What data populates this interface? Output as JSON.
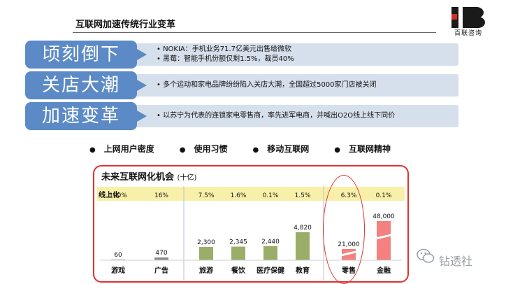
{
  "header": {
    "title": "互联网加速传统行业变革",
    "logo_text": "百联咨询"
  },
  "rows": [
    {
      "label": "顷刻倒下",
      "lines": [
        "NOKIA：手机业务71.7亿美元出售给微软",
        "黑莓：智能手机份额仅剩1.5%，裁员40%"
      ]
    },
    {
      "label": "关店大潮",
      "lines": [
        "多个运动和家电品牌纷纷陷入关店大潮，全国超过5000家门店被关闭"
      ]
    },
    {
      "label": "加速变革",
      "lines": [
        "以苏宁为代表的连锁家电零售商，率先进军电商，并喊出O2O线上线下同价"
      ]
    }
  ],
  "keywords": [
    "上网用户密度",
    "使用习惯",
    "移动互联网",
    "互联网精神"
  ],
  "panel": {
    "title": "未来互联网化机会",
    "unit": "(十亿)",
    "ratio_label": "线上化"
  },
  "chart_data": {
    "type": "bar",
    "title": "未来互联网化机会 (十亿)",
    "categories": [
      "游戏",
      "广告",
      "旅游",
      "餐饮",
      "医疗保健",
      "教育",
      "零售",
      "金融"
    ],
    "values": [
      60,
      470,
      2300,
      2345,
      2440,
      4820,
      21000,
      48000
    ],
    "value_labels": [
      "60",
      "470",
      "2,300",
      "2,345",
      "2,440",
      "4,820",
      "21,000",
      "48,000"
    ],
    "online_ratio": [
      "100%",
      "16%",
      "7.5%",
      "1.6%",
      "0.1%",
      "1.5%",
      "6.3%",
      "0.1%"
    ],
    "groups": [
      [
        0,
        1
      ],
      [
        2,
        3,
        4,
        5
      ],
      [
        6,
        7
      ]
    ],
    "colors": [
      "#8c8c8c",
      "#8c8c8c",
      "#9aae6a",
      "#9aae6a",
      "#9aae6a",
      "#9aae6a",
      "#f4807f",
      "#f4807f"
    ],
    "broken_axis_categories": [
      "零售",
      "金融"
    ]
  },
  "watermark": "钻透社",
  "colors": {
    "accent_blue": "#5b8ac6",
    "band_blue": "#d6e0ec",
    "highlight_red": "#e3302f",
    "ratio_yellow": "#f8f0a8"
  }
}
